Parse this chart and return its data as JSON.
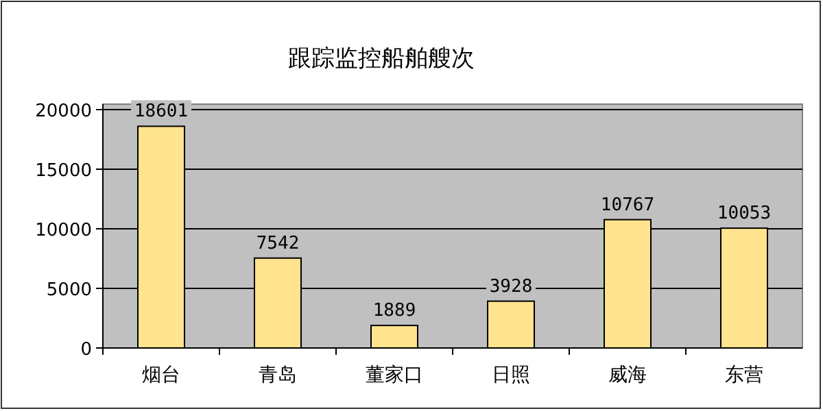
{
  "chart_data": {
    "type": "bar",
    "title": "跟踪监控船舶艘次",
    "categories": [
      "烟台",
      "青岛",
      "董家口",
      "日照",
      "威海",
      "东营"
    ],
    "values": [
      18601,
      7542,
      1889,
      3928,
      10767,
      10053
    ],
    "color": "#ffe38f",
    "ylim": [
      0,
      20000
    ],
    "yticks": [
      0,
      5000,
      10000,
      15000,
      20000
    ],
    "grid": "y",
    "data_labels": true
  }
}
